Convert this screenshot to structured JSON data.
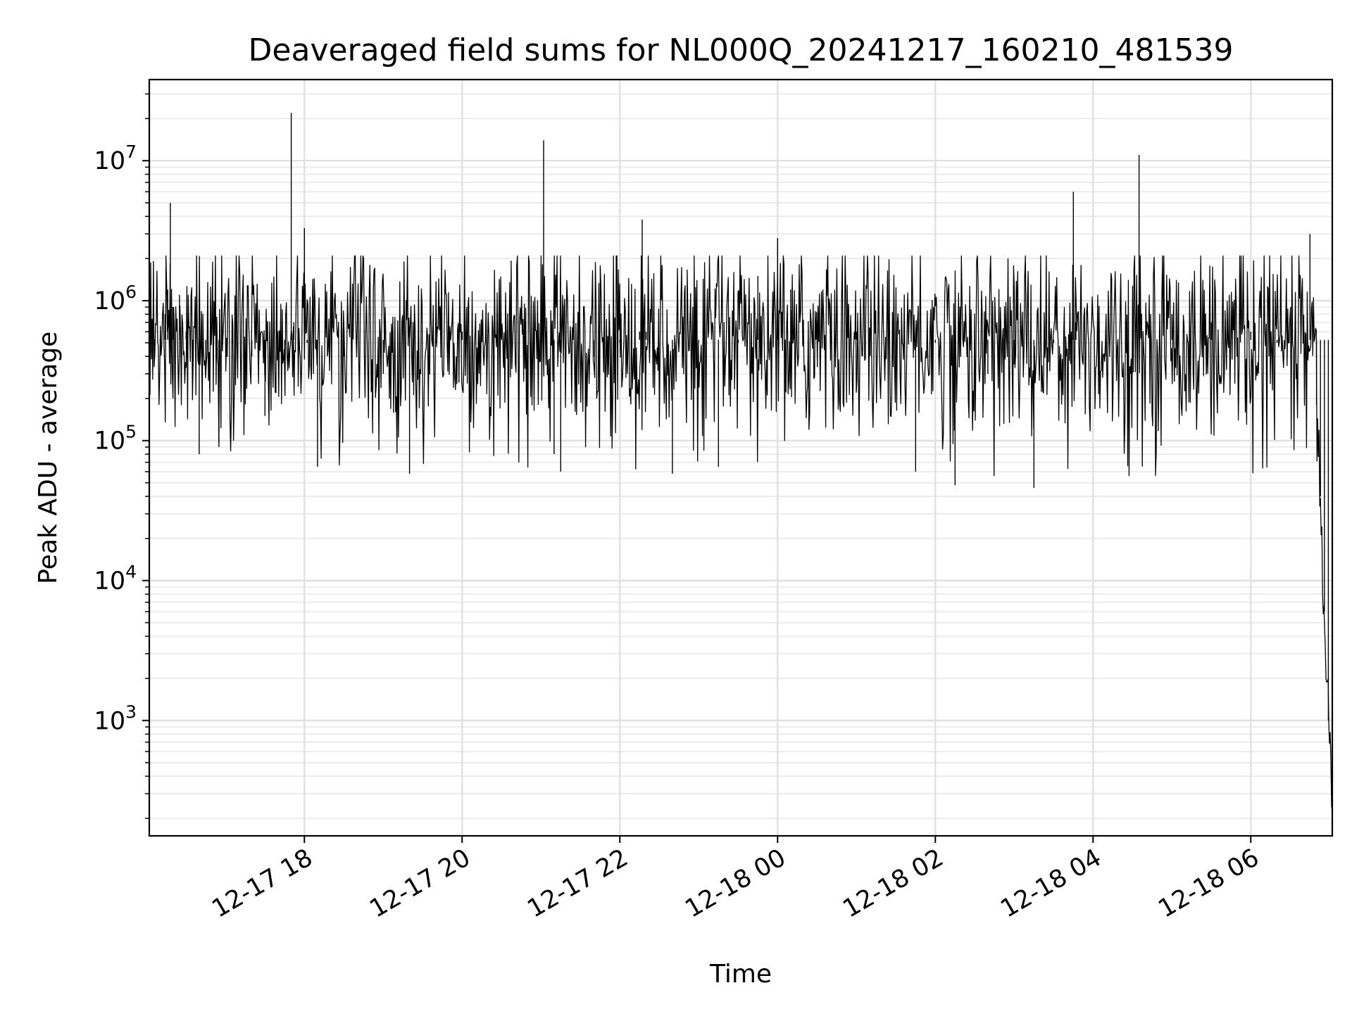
{
  "chart_data": {
    "type": "line",
    "title": "Deaveraged field sums for NL000Q_20241217_160210_481539",
    "xlabel": "Time",
    "ylabel": "Peak ADU - average",
    "xscale": "time",
    "yscale": "log",
    "grid": true,
    "xlim": [
      "2024-12-17 16:02",
      "2024-12-18 07:02"
    ],
    "ylim": [
      150,
      38000000
    ],
    "x_ticks": [
      {
        "label": "12-17 18",
        "t": "2024-12-17 18:00"
      },
      {
        "label": "12-17 20",
        "t": "2024-12-17 20:00"
      },
      {
        "label": "12-17 22",
        "t": "2024-12-17 22:00"
      },
      {
        "label": "12-18 00",
        "t": "2024-12-18 00:00"
      },
      {
        "label": "12-18 02",
        "t": "2024-12-18 02:00"
      },
      {
        "label": "12-18 04",
        "t": "2024-12-18 04:00"
      },
      {
        "label": "12-18 06",
        "t": "2024-12-18 06:00"
      }
    ],
    "y_ticks": [
      {
        "base": "10",
        "exp": "3",
        "value": 1000
      },
      {
        "base": "10",
        "exp": "4",
        "value": 10000
      },
      {
        "base": "10",
        "exp": "5",
        "value": 100000
      },
      {
        "base": "10",
        "exp": "6",
        "value": 1000000
      },
      {
        "base": "10",
        "exp": "7",
        "value": 10000000
      }
    ],
    "series": [
      {
        "color": "#000000",
        "points": [
          [
            "2024-12-17 16:02",
            380000
          ],
          [
            "2024-12-17 16:06",
            450000
          ],
          [
            "2024-12-17 16:10",
            520000
          ],
          [
            "2024-12-17 16:14",
            800000
          ],
          [
            "2024-12-17 16:16",
            1200000
          ],
          [
            "2024-12-17 16:18",
            5000000
          ],
          [
            "2024-12-17 16:20",
            900000
          ],
          [
            "2024-12-17 16:25",
            1100000
          ],
          [
            "2024-12-17 16:30",
            600000
          ],
          [
            "2024-12-17 16:35",
            250000
          ],
          [
            "2024-12-17 16:40",
            80000
          ],
          [
            "2024-12-17 16:45",
            300000
          ],
          [
            "2024-12-17 16:55",
            90000
          ],
          [
            "2024-12-17 17:05",
            500000
          ],
          [
            "2024-12-17 17:20",
            400000
          ],
          [
            "2024-12-17 17:30",
            150000
          ],
          [
            "2024-12-17 17:45",
            300000
          ],
          [
            "2024-12-17 17:50",
            22000000
          ],
          [
            "2024-12-17 17:52",
            700000
          ],
          [
            "2024-12-17 18:00",
            3300000
          ],
          [
            "2024-12-17 18:02",
            500000
          ],
          [
            "2024-12-17 18:10",
            65000
          ],
          [
            "2024-12-17 18:30",
            400000
          ],
          [
            "2024-12-17 19:00",
            300000
          ],
          [
            "2024-12-17 19:20",
            58000
          ],
          [
            "2024-12-17 19:40",
            500000
          ],
          [
            "2024-12-17 20:00",
            600000
          ],
          [
            "2024-12-17 20:30",
            650000
          ],
          [
            "2024-12-17 21:00",
            500000
          ],
          [
            "2024-12-17 21:02",
            14000000
          ],
          [
            "2024-12-17 21:04",
            600000
          ],
          [
            "2024-12-17 21:10",
            80000
          ],
          [
            "2024-12-17 21:15",
            60000
          ],
          [
            "2024-12-17 21:40",
            400000
          ],
          [
            "2024-12-17 22:00",
            500000
          ],
          [
            "2024-12-17 22:15",
            600000
          ],
          [
            "2024-12-17 22:17",
            3800000
          ],
          [
            "2024-12-17 22:20",
            600000
          ],
          [
            "2024-12-17 22:40",
            58000
          ],
          [
            "2024-12-17 23:00",
            500000
          ],
          [
            "2024-12-17 23:15",
            65000
          ],
          [
            "2024-12-17 23:30",
            500000
          ],
          [
            "2024-12-17 23:45",
            1500000
          ],
          [
            "2024-12-18 00:00",
            2800000
          ],
          [
            "2024-12-18 00:10",
            1200000
          ],
          [
            "2024-12-18 00:30",
            700000
          ],
          [
            "2024-12-18 01:00",
            600000
          ],
          [
            "2024-12-18 01:30",
            500000
          ],
          [
            "2024-12-18 01:45",
            60000
          ],
          [
            "2024-12-18 02:00",
            500000
          ],
          [
            "2024-12-18 02:15",
            48000
          ],
          [
            "2024-12-18 02:40",
            300000
          ],
          [
            "2024-12-18 03:00",
            350000
          ],
          [
            "2024-12-18 03:15",
            46000
          ],
          [
            "2024-12-18 03:30",
            500000
          ],
          [
            "2024-12-18 03:45",
            6000000
          ],
          [
            "2024-12-18 03:47",
            700000
          ],
          [
            "2024-12-18 04:10",
            400000
          ],
          [
            "2024-12-18 04:35",
            11000000
          ],
          [
            "2024-12-18 04:37",
            700000
          ],
          [
            "2024-12-18 05:00",
            800000
          ],
          [
            "2024-12-18 05:30",
            700000
          ],
          [
            "2024-12-18 06:00",
            600000
          ],
          [
            "2024-12-18 06:20",
            500000
          ],
          [
            "2024-12-18 06:45",
            3000000
          ],
          [
            "2024-12-18 06:50",
            180000
          ],
          [
            "2024-12-18 06:53",
            40000
          ],
          [
            "2024-12-18 06:56",
            6000
          ],
          [
            "2024-12-18 06:59",
            1000
          ],
          [
            "2024-12-18 07:02",
            260
          ]
        ]
      }
    ]
  }
}
